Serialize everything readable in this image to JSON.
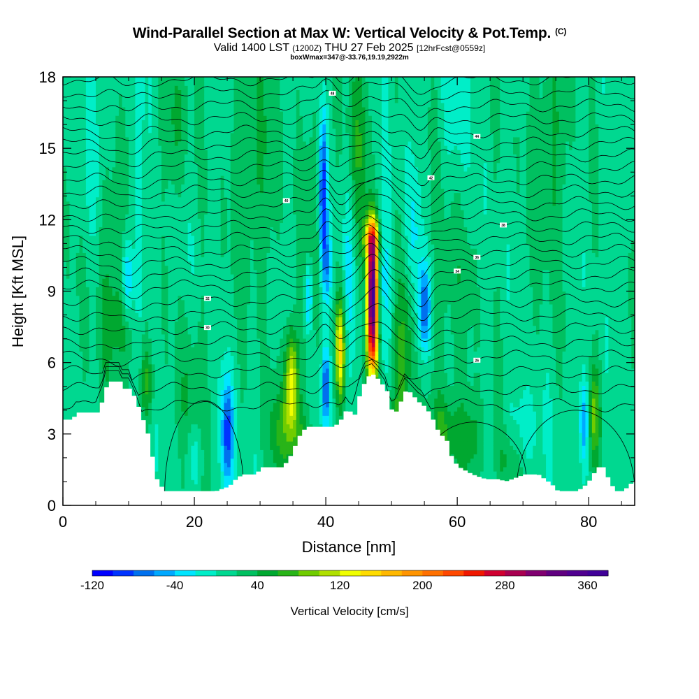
{
  "header": {
    "title": "Wind-Parallel Section at Max W: Vertical Velocity & Pot.Temp.",
    "title_tag": "(C)",
    "subtitle_pre": "Valid 1400 LST",
    "subtitle_z": "(1200Z)",
    "subtitle_date": "THU 27 Feb 2025",
    "subtitle_fcst": "[12hrFcst@0559z]",
    "info": "boxWmax=347@-33.76,19.19,2922m"
  },
  "chart_data": {
    "type": "heatmap",
    "xlabel": "Distance [nm]",
    "ylabel": "Height [Kft MSL]",
    "xlim": [
      0,
      87
    ],
    "ylim": [
      0,
      18
    ],
    "x_ticks": [
      0,
      20,
      40,
      60,
      80
    ],
    "x_tick_labels": [
      "0",
      "20",
      "40",
      "60",
      "80"
    ],
    "y_ticks": [
      0,
      3,
      6,
      9,
      12,
      15,
      18
    ],
    "y_tick_labels": [
      "0",
      "3",
      "6",
      "9",
      "12",
      "15",
      "18"
    ],
    "colorbar": {
      "title": "Vertical Velocity [cm/s]",
      "min": -120,
      "max": 380,
      "step": 20,
      "labels": [
        "-120",
        "-40",
        "40",
        "120",
        "200",
        "280",
        "360"
      ],
      "label_values": [
        -120,
        -40,
        40,
        120,
        200,
        280,
        360
      ],
      "colors": [
        "#0000ff",
        "#0033ff",
        "#0070ee",
        "#00a8ff",
        "#00e5ff",
        "#00eec8",
        "#00d890",
        "#00c060",
        "#00a830",
        "#28b418",
        "#70cc00",
        "#b0e000",
        "#f0ff00",
        "#ffdc00",
        "#ffb800",
        "#ff9400",
        "#ff7000",
        "#ff4800",
        "#f01800",
        "#d00030",
        "#a80050",
        "#800070",
        "#600080",
        "#500090",
        "#400098"
      ]
    },
    "terrain": [
      [
        0,
        3.6
      ],
      [
        1,
        3.6
      ],
      [
        2,
        3.9
      ],
      [
        5,
        3.9
      ],
      [
        6,
        4.6
      ],
      [
        6.5,
        5.2
      ],
      [
        8.5,
        5.2
      ],
      [
        9,
        4.9
      ],
      [
        10,
        4.9
      ],
      [
        10.5,
        4.6
      ],
      [
        11,
        4.3
      ],
      [
        12,
        3.5
      ],
      [
        13,
        2.7
      ],
      [
        13.5,
        1.6
      ],
      [
        14,
        1.1
      ],
      [
        14.5,
        0.9
      ],
      [
        15,
        0.6
      ],
      [
        17,
        0.6
      ],
      [
        20,
        0.6
      ],
      [
        22,
        0.6
      ],
      [
        23,
        0.6
      ],
      [
        25,
        0.8
      ],
      [
        26,
        1.1
      ],
      [
        27,
        1.3
      ],
      [
        29,
        1.3
      ],
      [
        30,
        1.6
      ],
      [
        33,
        1.6
      ],
      [
        34,
        1.9
      ],
      [
        35,
        2.5
      ],
      [
        36,
        3.1
      ],
      [
        37,
        3.3
      ],
      [
        39,
        3.3
      ],
      [
        41,
        3.3
      ],
      [
        42,
        3.6
      ],
      [
        43,
        4.1
      ],
      [
        44,
        3.7
      ],
      [
        45,
        4.8
      ],
      [
        46,
        5.4
      ],
      [
        47,
        5.5
      ],
      [
        48,
        5.2
      ],
      [
        49,
        4.8
      ],
      [
        50,
        3.7
      ],
      [
        51,
        4.3
      ],
      [
        52,
        4.9
      ],
      [
        53,
        4.6
      ],
      [
        54,
        4.3
      ],
      [
        55,
        4.1
      ],
      [
        56,
        3.6
      ],
      [
        57,
        3.0
      ],
      [
        58,
        2.8
      ],
      [
        59,
        1.9
      ],
      [
        60,
        1.6
      ],
      [
        62,
        1.3
      ],
      [
        64,
        1.1
      ],
      [
        66,
        1.1
      ],
      [
        67,
        1.0
      ],
      [
        70,
        1.3
      ],
      [
        72,
        1.3
      ],
      [
        73,
        1.1
      ],
      [
        74,
        0.9
      ],
      [
        75,
        0.6
      ],
      [
        76,
        0.6
      ],
      [
        78,
        0.6
      ],
      [
        79,
        0.8
      ],
      [
        80,
        1.1
      ],
      [
        81,
        1.6
      ],
      [
        82,
        1.6
      ],
      [
        83,
        0.9
      ],
      [
        84,
        0.6
      ],
      [
        85,
        0.6
      ],
      [
        86,
        0.9
      ],
      [
        87,
        1.0
      ]
    ],
    "updrafts": [
      {
        "x": 47.1,
        "z": 9.2,
        "sx": 0.55,
        "sz": 1.7,
        "w": 347
      },
      {
        "x": 47.1,
        "z": 6.6,
        "sx": 0.65,
        "sz": 1.3,
        "w": 150
      },
      {
        "x": 47.0,
        "z": 11.2,
        "sx": 0.9,
        "sz": 0.6,
        "w": 110
      },
      {
        "x": 44.8,
        "z": 15.0,
        "sx": 1.2,
        "sz": 3.2,
        "w": 40
      },
      {
        "x": 42.2,
        "z": 6.6,
        "sx": 0.5,
        "sz": 1.4,
        "w": 130
      },
      {
        "x": 34.8,
        "z": 5.1,
        "sx": 0.7,
        "sz": 1.6,
        "w": 130
      },
      {
        "x": 33.2,
        "z": 3.0,
        "sx": 1.5,
        "sz": 1.4,
        "w": 45
      },
      {
        "x": 36.5,
        "z": 2.5,
        "sx": 1.0,
        "sz": 1.0,
        "w": 40
      },
      {
        "x": 52.0,
        "z": 7.0,
        "sx": 1.2,
        "sz": 2.0,
        "w": 40
      },
      {
        "x": 50.8,
        "z": 3.3,
        "sx": 1.3,
        "sz": 1.5,
        "w": 50
      },
      {
        "x": 58.0,
        "z": 3.0,
        "sx": 1.5,
        "sz": 1.2,
        "w": 45
      },
      {
        "x": 62.0,
        "z": 2.8,
        "sx": 1.5,
        "sz": 1.3,
        "w": 40
      },
      {
        "x": 68.0,
        "z": 2.0,
        "sx": 1.5,
        "sz": 1.0,
        "w": 35
      },
      {
        "x": 80.8,
        "z": 3.8,
        "sx": 0.6,
        "sz": 1.4,
        "w": 70
      },
      {
        "x": 12.8,
        "z": 5.2,
        "sx": 0.8,
        "sz": 1.1,
        "w": 50
      },
      {
        "x": 9.3,
        "z": 7.8,
        "sx": 1.2,
        "sz": 1.2,
        "w": 35
      },
      {
        "x": 7.0,
        "z": 10.0,
        "sx": 2.5,
        "sz": 4.0,
        "w": 30
      },
      {
        "x": 29.0,
        "z": 14.5,
        "sx": 2.5,
        "sz": 4.0,
        "w": 30
      },
      {
        "x": 19.5,
        "z": 4.0,
        "sx": 1.5,
        "sz": 2.5,
        "w": 30
      },
      {
        "x": 38.0,
        "z": 12.0,
        "sx": 1.0,
        "sz": 4.0,
        "w": 30
      },
      {
        "x": 17.0,
        "z": 16.0,
        "sx": 1.5,
        "sz": 2.0,
        "w": 30
      },
      {
        "x": 74.0,
        "z": 15.0,
        "sx": 2.0,
        "sz": 4.0,
        "w": 30
      },
      {
        "x": 59.0,
        "z": 10.0,
        "sx": 2.0,
        "sz": 4.0,
        "w": 25
      }
    ],
    "downdrafts": [
      {
        "x": 39.6,
        "z": 13.0,
        "sx": 0.45,
        "sz": 2.4,
        "w": -115
      },
      {
        "x": 40.3,
        "z": 10.0,
        "sx": 0.5,
        "sz": 1.2,
        "w": -60
      },
      {
        "x": 37.4,
        "z": 8.8,
        "sx": 0.4,
        "sz": 1.1,
        "w": -75
      },
      {
        "x": 40.0,
        "z": 5.0,
        "sx": 0.45,
        "sz": 1.2,
        "w": -100
      },
      {
        "x": 25.0,
        "z": 3.0,
        "sx": 0.65,
        "sz": 1.6,
        "w": -105
      },
      {
        "x": 55.0,
        "z": 8.3,
        "sx": 0.7,
        "sz": 1.3,
        "w": -95
      },
      {
        "x": 9.8,
        "z": 9.3,
        "sx": 0.6,
        "sz": 1.3,
        "w": -70
      },
      {
        "x": 11.6,
        "z": 13.0,
        "sx": 0.5,
        "sz": 5.0,
        "w": -45
      },
      {
        "x": 48.8,
        "z": 10.0,
        "sx": 0.8,
        "sz": 3.0,
        "w": -40
      },
      {
        "x": 43.5,
        "z": 10.0,
        "sx": 0.6,
        "sz": 2.5,
        "w": -35
      },
      {
        "x": 79.3,
        "z": 3.5,
        "sx": 0.5,
        "sz": 1.2,
        "w": -70
      },
      {
        "x": 70.0,
        "z": 3.0,
        "sx": 2.0,
        "sz": 1.2,
        "w": -30
      },
      {
        "x": 20.0,
        "z": 2.2,
        "sx": 1.0,
        "sz": 1.0,
        "w": -35
      },
      {
        "x": 60.0,
        "z": 16.0,
        "sx": 1.5,
        "sz": 3.0,
        "w": -30
      },
      {
        "x": 5.0,
        "z": 14.0,
        "sx": 1.5,
        "sz": 4.0,
        "w": -25
      },
      {
        "x": 53.5,
        "z": 11.5,
        "sx": 0.8,
        "sz": 2.0,
        "w": -30
      }
    ],
    "theta_levels": [
      {
        "base": 17.9,
        "label": "",
        "lx": 0
      },
      {
        "base": 17.35,
        "label": "",
        "lx": 0
      },
      {
        "base": 16.8,
        "label": "48",
        "lx": 41
      },
      {
        "base": 16.25,
        "label": "",
        "lx": 0
      },
      {
        "base": 15.7,
        "label": "44",
        "lx": 63
      },
      {
        "base": 15.2,
        "label": "",
        "lx": 0
      },
      {
        "base": 14.7,
        "label": "",
        "lx": 0
      },
      {
        "base": 14.2,
        "label": "42",
        "lx": 56
      },
      {
        "base": 13.7,
        "label": "",
        "lx": 0
      },
      {
        "base": 13.2,
        "label": "",
        "lx": 0
      },
      {
        "base": 12.7,
        "label": "40",
        "lx": 34
      },
      {
        "base": 12.2,
        "label": "",
        "lx": 0
      },
      {
        "base": 11.7,
        "label": "38",
        "lx": 67
      },
      {
        "base": 11.2,
        "label": "",
        "lx": 0
      },
      {
        "base": 10.7,
        "label": "36",
        "lx": 63
      },
      {
        "base": 10.2,
        "label": "",
        "lx": 0
      },
      {
        "base": 9.7,
        "label": "34",
        "lx": 60
      },
      {
        "base": 9.2,
        "label": "",
        "lx": 0
      },
      {
        "base": 8.6,
        "label": "32",
        "lx": 22
      },
      {
        "base": 8.0,
        "label": "",
        "lx": 0
      },
      {
        "base": 7.45,
        "label": "30",
        "lx": 22
      },
      {
        "base": 6.85,
        "label": "",
        "lx": 0
      },
      {
        "base": 6.25,
        "label": "26",
        "lx": 63
      },
      {
        "base": 5.6,
        "label": "",
        "lx": 0
      },
      {
        "base": 4.9,
        "label": "",
        "lx": 0
      },
      {
        "base": 4.2,
        "label": "",
        "lx": 0
      }
    ],
    "low_contours": [
      {
        "cx": 21.5,
        "cz": 0.6,
        "rx": 6.0,
        "rz": 3.8
      },
      {
        "cx": 62.5,
        "cz": 1.1,
        "rx": 8.0,
        "rz": 2.4
      },
      {
        "cx": 78.0,
        "cz": 0.6,
        "rx": 9.0,
        "rz": 3.4
      }
    ]
  }
}
